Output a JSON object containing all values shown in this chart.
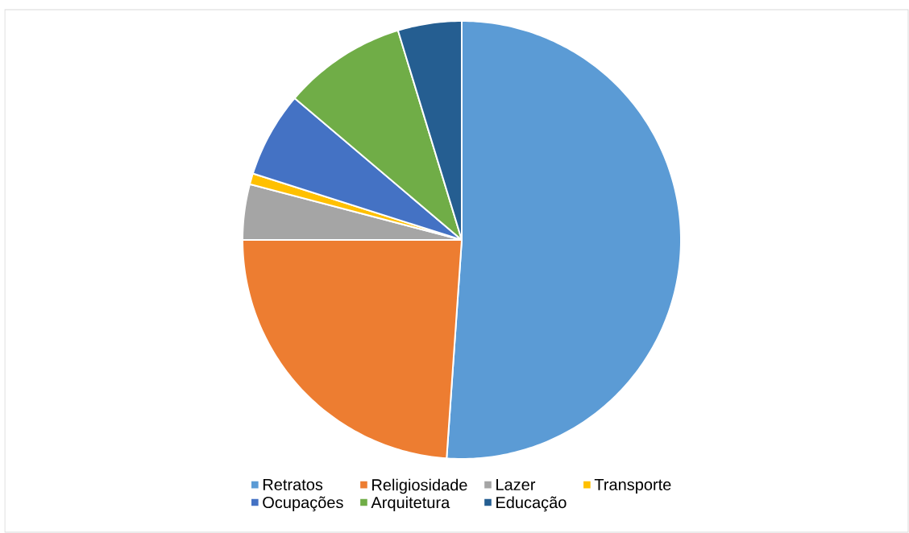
{
  "chart_data": {
    "type": "pie",
    "categories": [
      "Retratos",
      "Religiosidade",
      "Lazer",
      "Transporte",
      "Ocupações",
      "Arquitetura",
      "Educação"
    ],
    "values": [
      51.1,
      23.9,
      4.1,
      0.8,
      6.3,
      9.1,
      4.7
    ],
    "colors": [
      "#5b9bd5",
      "#ed7d31",
      "#a5a5a5",
      "#ffc000",
      "#4472c4",
      "#70ad47",
      "#255e91"
    ],
    "legend": "bottom"
  }
}
